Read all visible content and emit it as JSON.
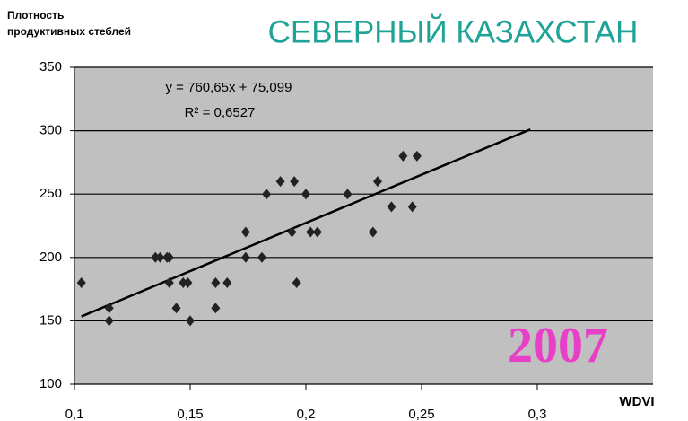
{
  "chart_data": {
    "type": "scatter",
    "title": "СЕВЕРНЫЙ КАЗАХСТАН",
    "ylabel": [
      "Плотность",
      "продуктивных стеблей"
    ],
    "xlabel": "WDVI",
    "annotations": [
      "y = 760,65x + 75,099",
      "R² = 0,6527",
      "2007"
    ],
    "trendline": {
      "slope": 760.65,
      "intercept": 75.099,
      "x": [
        0.103,
        0.297
      ]
    },
    "color": "#222222",
    "grid": true,
    "xlim": [
      0.1,
      0.35
    ],
    "ylim": [
      100,
      350
    ],
    "xticks": [
      {
        "value": 0.1,
        "label": "0,1"
      },
      {
        "value": 0.15,
        "label": "0,15"
      },
      {
        "value": 0.2,
        "label": "0,2"
      },
      {
        "value": 0.25,
        "label": "0,25"
      },
      {
        "value": 0.3,
        "label": "0,3"
      }
    ],
    "yticks": [
      100,
      150,
      200,
      250,
      300,
      350
    ],
    "x": [
      0.103,
      0.115,
      0.115,
      0.135,
      0.137,
      0.14,
      0.141,
      0.141,
      0.144,
      0.147,
      0.149,
      0.15,
      0.161,
      0.161,
      0.166,
      0.174,
      0.174,
      0.181,
      0.183,
      0.189,
      0.195,
      0.194,
      0.196,
      0.2,
      0.202,
      0.205,
      0.218,
      0.229,
      0.231,
      0.237,
      0.242,
      0.246,
      0.248
    ],
    "values": [
      180,
      160,
      150,
      200,
      200,
      200,
      200,
      180,
      160,
      180,
      180,
      150,
      160,
      180,
      180,
      200,
      220,
      200,
      250,
      260,
      260,
      220,
      180,
      250,
      220,
      220,
      250,
      220,
      260,
      240,
      280,
      240,
      280
    ]
  }
}
